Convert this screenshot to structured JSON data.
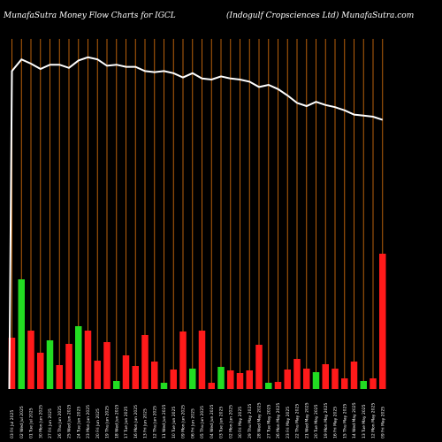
{
  "header": {
    "left_title": "MunafaSutra  Money Flow  Charts for IGCL",
    "right_title": "(Indogulf  Cropsciences Ltd) MunafaSutra.com"
  },
  "colors": {
    "background": "#000000",
    "grid_line": "#b8600b",
    "inflow": "#22dd22",
    "outflow": "#ff1a1a",
    "price_line": "#ffffff"
  },
  "chart_data": {
    "type": "bar",
    "title": "MunafaSutra  Money Flow  Charts for IGCL",
    "subtitle": "(Indogulf  Cropsciences Ltd) MunafaSutra.com",
    "x_tick_labels": [
      "03 Fri Jul 2025",
      "02 Wed Jul 2025",
      "01 Tue Jul 2025",
      "30 Mon Jun 2025",
      "27 Fri Jun 2025",
      "26 Thu Jun 2025",
      "25 Wed Jun 2025",
      "24 Tue Jun 2025",
      "23 Mon Jun 2025",
      "20 Fri Jun 2025",
      "19 Thu Jun 2025",
      "18 Wed Jun 2025",
      "17 Tue Jun 2025",
      "16 Mon Jun 2025",
      "13 Fri Jun 2025",
      "12 Thu Jun 2025",
      "11 Wed Jun 2025",
      "10 Tue Jun 2025",
      "09 Mon Jun 2025",
      "06 Fri Jun 2025",
      "05 Thu Jun 2025",
      "04 Wed Jun 2025",
      "03 Tue Jun 2025",
      "02 Mon Jun 2025",
      "30 Fri May 2025",
      "29 Thu May 2025",
      "28 Wed May 2025",
      "27 Tue May 2025",
      "26 Mon May 2025",
      "23 Fri May 2025",
      "22 Thu May 2025",
      "21 Wed May 2025",
      "20 Tue May 2025",
      "19 Mon May 2025",
      "16 Fri May 2025",
      "15 Thu May 2025",
      "14 Wed May 2025",
      "13 Tue May 2025",
      "12 Mon May 2025",
      "09 Fri May 2025"
    ],
    "money_flow": [
      {
        "flow": "out",
        "value": 58
      },
      {
        "flow": "in",
        "value": 124
      },
      {
        "flow": "out",
        "value": 66
      },
      {
        "flow": "out",
        "value": 41
      },
      {
        "flow": "in",
        "value": 55
      },
      {
        "flow": "out",
        "value": 27
      },
      {
        "flow": "out",
        "value": 51
      },
      {
        "flow": "in",
        "value": 71
      },
      {
        "flow": "out",
        "value": 66
      },
      {
        "flow": "out",
        "value": 32
      },
      {
        "flow": "out",
        "value": 53
      },
      {
        "flow": "in",
        "value": 9
      },
      {
        "flow": "out",
        "value": 38
      },
      {
        "flow": "out",
        "value": 26
      },
      {
        "flow": "out",
        "value": 61
      },
      {
        "flow": "out",
        "value": 31
      },
      {
        "flow": "in",
        "value": 7
      },
      {
        "flow": "out",
        "value": 22
      },
      {
        "flow": "out",
        "value": 65
      },
      {
        "flow": "in",
        "value": 23
      },
      {
        "flow": "out",
        "value": 66
      },
      {
        "flow": "out",
        "value": 7
      },
      {
        "flow": "in",
        "value": 25
      },
      {
        "flow": "out",
        "value": 21
      },
      {
        "flow": "out",
        "value": 18
      },
      {
        "flow": "out",
        "value": 21
      },
      {
        "flow": "out",
        "value": 50
      },
      {
        "flow": "in",
        "value": 7
      },
      {
        "flow": "out",
        "value": 8
      },
      {
        "flow": "out",
        "value": 22
      },
      {
        "flow": "out",
        "value": 34
      },
      {
        "flow": "out",
        "value": 23
      },
      {
        "flow": "in",
        "value": 19
      },
      {
        "flow": "out",
        "value": 28
      },
      {
        "flow": "out",
        "value": 23
      },
      {
        "flow": "out",
        "value": 12
      },
      {
        "flow": "out",
        "value": 31
      },
      {
        "flow": "in",
        "value": 9
      },
      {
        "flow": "out",
        "value": 12
      },
      {
        "flow": "out",
        "value": 153
      }
    ],
    "price_line": [
      88,
      99,
      95,
      90,
      94,
      94,
      91,
      98,
      101,
      99,
      93,
      94,
      92,
      92,
      88,
      87,
      88,
      86,
      82,
      86,
      81,
      80,
      83,
      81,
      80,
      78,
      73,
      75,
      71,
      65,
      58,
      55,
      59,
      56,
      54,
      51,
      47,
      46,
      45,
      42
    ],
    "ylim": [
      0,
      160
    ],
    "grid": "vertical"
  }
}
